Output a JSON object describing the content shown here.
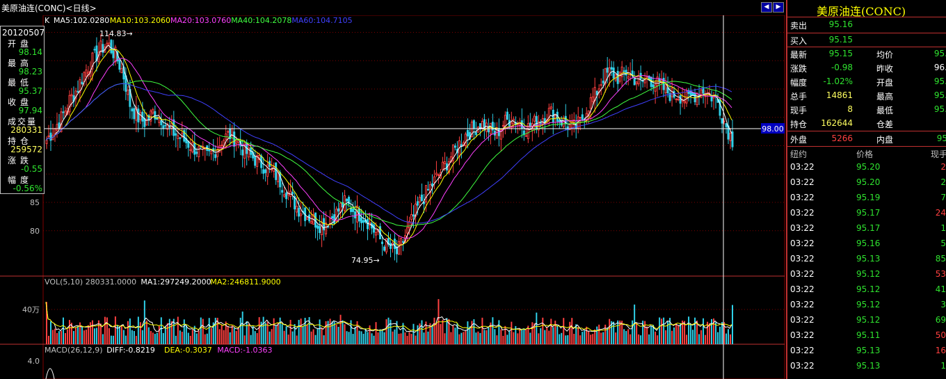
{
  "window": {
    "title": "美原油连(CONC)<日线>"
  },
  "legend": {
    "k_label": "K",
    "ma5": "MA5:102.0280",
    "ma10": "MA10:103.2060",
    "ma20": "MA20:103.0760",
    "ma40": "MA40:104.2078",
    "ma60": "MA60:104.7105",
    "vol": "VOL(5,10) 280331.0000",
    "vol_ma1": "MA1:297249.2000",
    "vol_ma2": "MA2:246811.9000",
    "macd": "MACD(26,12,9)",
    "diff": "DIFF:-0.8219",
    "dea": "DEA:-0.3037",
    "macd_val": "MACD:-1.0363"
  },
  "info_box": {
    "date": "20120507",
    "open_label": "开盘",
    "open": "98.14",
    "high_label": "最高",
    "high": "98.23",
    "low_label": "最低",
    "low": "95.37",
    "close_label": "收盘",
    "close": "97.94",
    "volume_label": "成交量",
    "volume": "280331",
    "oi_label": "持仓",
    "oi": "259572",
    "change_label": "涨跌",
    "change": "-0.55",
    "pct_label": "幅度",
    "pct": "-0.56%"
  },
  "quote_panel": {
    "title": "美原油连(CONC)",
    "sell_label": "卖出",
    "sell": "95.16",
    "buy_label": "买入",
    "buy": "95.15",
    "last_label": "最新",
    "last": "95.15",
    "avg_label": "均价",
    "avg": "95.",
    "chg_label": "涨跌",
    "chg": "-0.98",
    "prev_label": "昨收",
    "prev": "96.",
    "pct_label": "幅度",
    "pct": "-1.02%",
    "open_label": "开盘",
    "open": "95.",
    "total_label": "总手",
    "total": "14861",
    "high_label": "最高",
    "high": "95.",
    "now_label": "现手",
    "now": "8",
    "low_label": "最低",
    "low": "95.",
    "oi_label": "持仓",
    "oi": "162644",
    "oi_diff_label": "仓差",
    "outer_label": "外盘",
    "outer": "5266",
    "inner_label": "内盘",
    "inner": "95",
    "ticks_header": {
      "time": "纽约",
      "price": "价格",
      "qty": "现手"
    },
    "ticks": [
      {
        "time": "03:22",
        "price": "95.20",
        "qty": "2"
      },
      {
        "time": "03:22",
        "price": "95.20",
        "qty": "2"
      },
      {
        "time": "03:22",
        "price": "95.19",
        "qty": "7"
      },
      {
        "time": "03:22",
        "price": "95.17",
        "qty": "24"
      },
      {
        "time": "03:22",
        "price": "95.17",
        "qty": "1"
      },
      {
        "time": "03:22",
        "price": "95.16",
        "qty": "5"
      },
      {
        "time": "03:22",
        "price": "95.13",
        "qty": "85"
      },
      {
        "time": "03:22",
        "price": "95.12",
        "qty": "53"
      },
      {
        "time": "03:22",
        "price": "95.12",
        "qty": "41"
      },
      {
        "time": "03:22",
        "price": "95.12",
        "qty": "3"
      },
      {
        "time": "03:22",
        "price": "95.12",
        "qty": "69"
      },
      {
        "time": "03:22",
        "price": "95.11",
        "qty": "50"
      },
      {
        "time": "03:22",
        "price": "95.13",
        "qty": "16"
      },
      {
        "time": "03:22",
        "price": "95.13",
        "qty": "1"
      }
    ]
  },
  "chart_data": {
    "type": "candlestick",
    "ylim": [
      72,
      118
    ],
    "y_ticks": [
      80,
      85
    ],
    "vol_tick_label": "40万",
    "macd_tick_label": "4.0",
    "crosshair_price": "98.00",
    "max_label": "114.83",
    "min_label": "74.95",
    "max_value": 114.83,
    "min_value": 74.95,
    "close_path": [
      96,
      98,
      100,
      103,
      105,
      108,
      110,
      112,
      113,
      111,
      108,
      102,
      100,
      99,
      101,
      100,
      98,
      97,
      96,
      95,
      94,
      93,
      94,
      96,
      97,
      96,
      94,
      93,
      92,
      91,
      90,
      88,
      86,
      84,
      83,
      82,
      81,
      82,
      83,
      85,
      84,
      83,
      82,
      80,
      78,
      77,
      76,
      79,
      82,
      85,
      87,
      89,
      91,
      93,
      95,
      97,
      98,
      99,
      98,
      97,
      99,
      100,
      99,
      98,
      99,
      100,
      101,
      100,
      99,
      98,
      99,
      102,
      104,
      107,
      108,
      107,
      108,
      107,
      106,
      107,
      106,
      105,
      104,
      104,
      103,
      104,
      105,
      104,
      103,
      99,
      96
    ],
    "colors": {
      "up": "#ff4040",
      "down": "#2fd0e8",
      "ma5": "#ffffff",
      "ma10": "#ffff00",
      "ma20": "#ff40ff",
      "ma40": "#40ff40",
      "ma60": "#4040ff",
      "grid": "#800000"
    }
  }
}
